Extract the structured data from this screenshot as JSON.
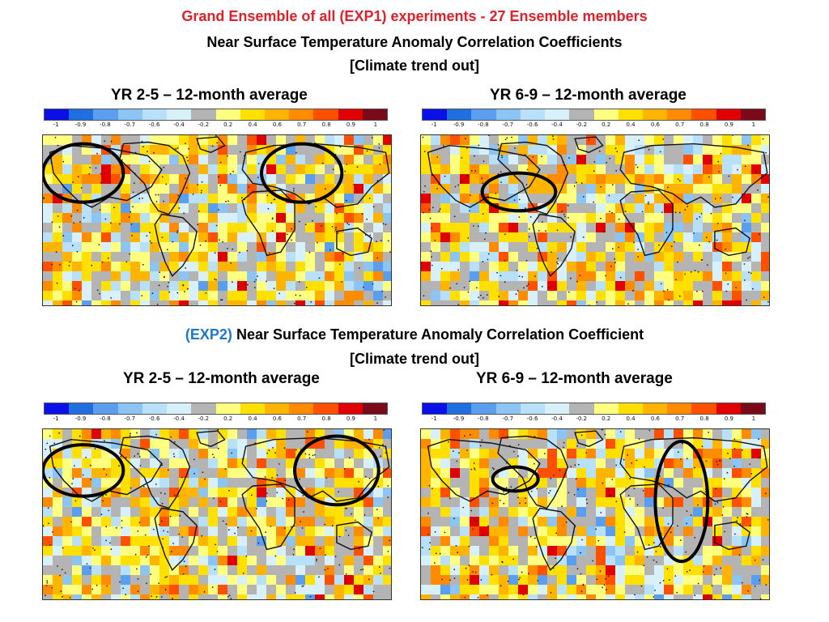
{
  "header": {
    "line1": "Grand Ensemble of all (EXP1) experiments - 27 Ensemble members",
    "line2": "Near Surface Temperature  Anomaly Correlation Coefficients",
    "line3": "[Climate trend out]"
  },
  "section2": {
    "exp_label": "(EXP2)",
    "line1_rest": " Near Surface Temperature  Anomaly Correlation Coefficient",
    "line2": "[Climate trend out]"
  },
  "colorbar": {
    "colors": [
      "#0a10e6",
      "#1f6fe0",
      "#5b9ef0",
      "#8cc4f4",
      "#b8e0f8",
      "#d8f0fa",
      "#b4b4b4",
      "#ffff80",
      "#ffe000",
      "#ffb400",
      "#ff8c00",
      "#ff5000",
      "#e00000",
      "#7a0a1a"
    ],
    "tick_labels": [
      "-1",
      "-0.9",
      "-0.8",
      "-0.7",
      "-0.6",
      "-0.4",
      "-0.2",
      "0.2",
      "0.4",
      "0.6",
      "0.7",
      "0.8",
      "0.9",
      "1"
    ]
  },
  "panels": [
    {
      "title": "YR 2-5 – 12-month average",
      "seed": 11,
      "circles": [
        [
          0.115,
          0.22,
          0.115,
          0.17
        ],
        [
          0.74,
          0.22,
          0.115,
          0.17
        ]
      ]
    },
    {
      "title": "YR 6-9 – 12-month average",
      "seed": 29,
      "circles": [
        [
          0.28,
          0.33,
          0.105,
          0.11
        ]
      ]
    },
    {
      "title": "YR 2-5 – 12-month average",
      "seed": 47,
      "circles": [
        [
          0.115,
          0.24,
          0.115,
          0.15
        ],
        [
          0.84,
          0.24,
          0.12,
          0.2
        ]
      ]
    },
    {
      "title": "YR 6-9 – 12-month average",
      "seed": 83,
      "circles": [
        [
          0.27,
          0.29,
          0.065,
          0.07
        ],
        [
          0.745,
          0.42,
          0.075,
          0.35
        ]
      ]
    }
  ]
}
